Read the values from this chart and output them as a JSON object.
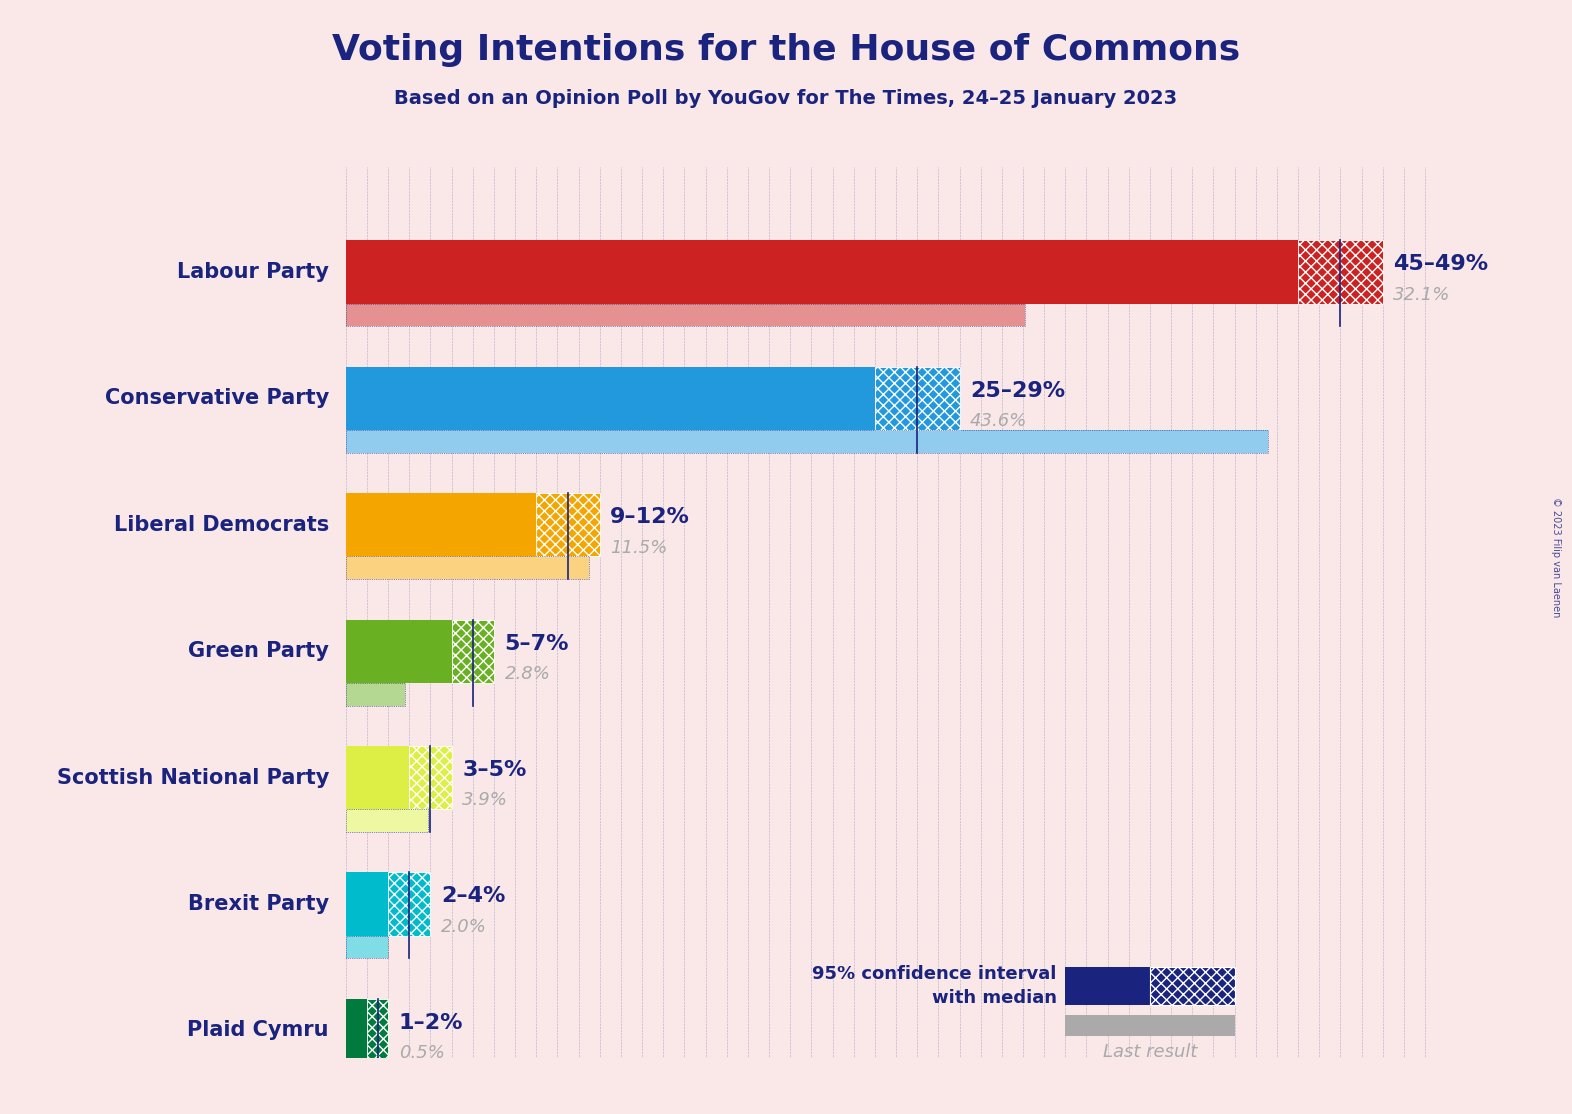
{
  "title": "Voting Intentions for the House of Commons",
  "subtitle": "Based on an Opinion Poll by YouGov for The Times, 24–25 January 2023",
  "copyright": "© 2023 Filip van Laenen",
  "bg": "#fae8e8",
  "title_color": "#1a237e",
  "last_color": "#aaaaaa",
  "grid_color": "#1a237e",
  "parties": [
    {
      "name": "Labour Party",
      "ci_low": 45,
      "ci_high": 49,
      "median": 47,
      "last": 32.1,
      "color": "#cc2222",
      "ci_label": "45–49%",
      "last_label": "32.1%"
    },
    {
      "name": "Conservative Party",
      "ci_low": 25,
      "ci_high": 29,
      "median": 27,
      "last": 43.6,
      "color": "#2299dd",
      "ci_label": "25–29%",
      "last_label": "43.6%"
    },
    {
      "name": "Liberal Democrats",
      "ci_low": 9,
      "ci_high": 12,
      "median": 10.5,
      "last": 11.5,
      "color": "#f5a500",
      "ci_label": "9–12%",
      "last_label": "11.5%"
    },
    {
      "name": "Green Party",
      "ci_low": 5,
      "ci_high": 7,
      "median": 6,
      "last": 2.8,
      "color": "#6ab023",
      "ci_label": "5–7%",
      "last_label": "2.8%"
    },
    {
      "name": "Scottish National Party",
      "ci_low": 3,
      "ci_high": 5,
      "median": 4,
      "last": 3.9,
      "color": "#ddee44",
      "ci_label": "3–5%",
      "last_label": "3.9%"
    },
    {
      "name": "Brexit Party",
      "ci_low": 2,
      "ci_high": 4,
      "median": 3,
      "last": 2.0,
      "color": "#00bbcc",
      "ci_label": "2–4%",
      "last_label": "2.0%"
    },
    {
      "name": "Plaid Cymru",
      "ci_low": 1,
      "ci_high": 2,
      "median": 1.5,
      "last": 0.5,
      "color": "#007a3d",
      "ci_label": "1–2%",
      "last_label": "0.5%"
    }
  ],
  "xlim_max": 52,
  "legend_ci_text": "95% confidence interval\nwith median",
  "legend_last_text": "Last result"
}
